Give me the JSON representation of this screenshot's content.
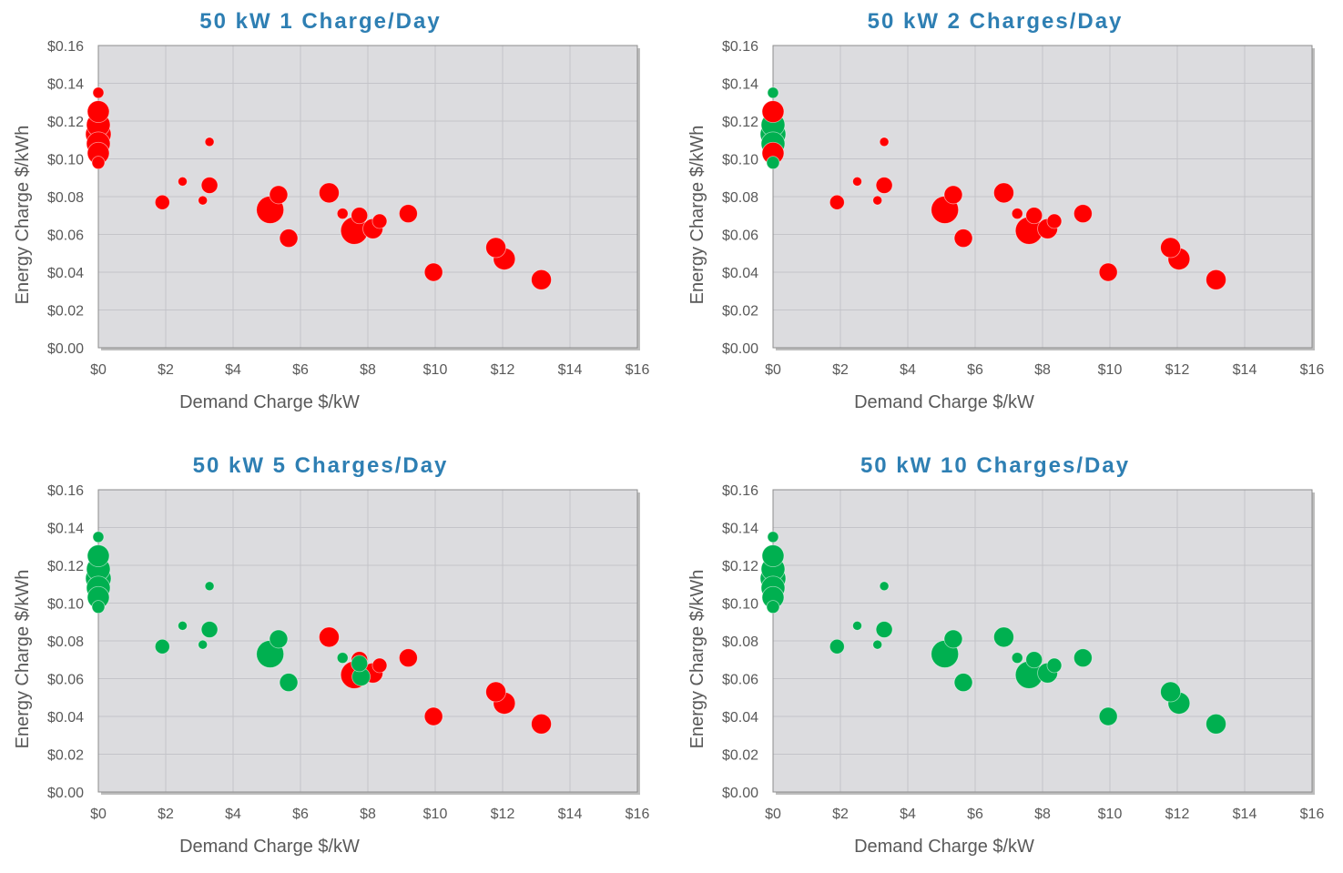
{
  "colors": {
    "plot_background": "#dcdcdf",
    "grid": "#c4c4c9",
    "plot_border": "#8c8c8c",
    "title": "#2e7fb3",
    "tick_text": "#595959",
    "red": "#ff0000",
    "green": "#00b050"
  },
  "chart_data": [
    {
      "type": "scatter",
      "title": "50 kW 1 Charge/Day",
      "xlabel": "Demand Charge $/kW",
      "ylabel": "Energy Charge $/kWh",
      "xlim": [
        0,
        16
      ],
      "ylim": [
        0,
        0.16
      ],
      "x_ticks": [
        "$0",
        "$2",
        "$4",
        "$6",
        "$8",
        "$10",
        "$12",
        "$14",
        "$16"
      ],
      "y_ticks": [
        "$0.00",
        "$0.02",
        "$0.04",
        "$0.06",
        "$0.08",
        "$0.10",
        "$0.12",
        "$0.14",
        "$0.16"
      ],
      "grid": true,
      "points": [
        {
          "x": 0,
          "y": 0.135,
          "size": 6,
          "color": "red"
        },
        {
          "x": 0,
          "y": 0.125,
          "size": 12,
          "color": "red"
        },
        {
          "x": 0,
          "y": 0.118,
          "size": 13,
          "color": "red"
        },
        {
          "x": 0,
          "y": 0.113,
          "size": 14,
          "color": "red"
        },
        {
          "x": 0,
          "y": 0.108,
          "size": 13,
          "color": "red"
        },
        {
          "x": 0,
          "y": 0.103,
          "size": 12,
          "color": "red"
        },
        {
          "x": 0,
          "y": 0.098,
          "size": 7,
          "color": "red"
        },
        {
          "x": 1.9,
          "y": 0.077,
          "size": 8,
          "color": "red"
        },
        {
          "x": 2.5,
          "y": 0.088,
          "size": 5,
          "color": "red"
        },
        {
          "x": 3.1,
          "y": 0.078,
          "size": 5,
          "color": "red"
        },
        {
          "x": 3.3,
          "y": 0.086,
          "size": 9,
          "color": "red"
        },
        {
          "x": 3.3,
          "y": 0.109,
          "size": 5,
          "color": "red"
        },
        {
          "x": 5.1,
          "y": 0.073,
          "size": 15,
          "color": "red"
        },
        {
          "x": 5.35,
          "y": 0.081,
          "size": 10,
          "color": "red"
        },
        {
          "x": 5.65,
          "y": 0.058,
          "size": 10,
          "color": "red"
        },
        {
          "x": 6.85,
          "y": 0.082,
          "size": 11,
          "color": "red"
        },
        {
          "x": 7.25,
          "y": 0.071,
          "size": 6,
          "color": "red"
        },
        {
          "x": 7.6,
          "y": 0.062,
          "size": 15,
          "color": "red"
        },
        {
          "x": 7.75,
          "y": 0.07,
          "size": 9,
          "color": "red"
        },
        {
          "x": 8.15,
          "y": 0.063,
          "size": 11,
          "color": "red"
        },
        {
          "x": 8.35,
          "y": 0.067,
          "size": 8,
          "color": "red"
        },
        {
          "x": 9.2,
          "y": 0.071,
          "size": 10,
          "color": "red"
        },
        {
          "x": 9.95,
          "y": 0.04,
          "size": 10,
          "color": "red"
        },
        {
          "x": 11.8,
          "y": 0.053,
          "size": 11,
          "color": "red"
        },
        {
          "x": 12.05,
          "y": 0.047,
          "size": 12,
          "color": "red"
        },
        {
          "x": 13.15,
          "y": 0.036,
          "size": 11,
          "color": "red"
        }
      ]
    },
    {
      "type": "scatter",
      "title": "50 kW 2 Charges/Day",
      "xlabel": "Demand Charge $/kW",
      "ylabel": "Energy Charge $/kWh",
      "xlim": [
        0,
        16
      ],
      "ylim": [
        0,
        0.16
      ],
      "x_ticks": [
        "$0",
        "$2",
        "$4",
        "$6",
        "$8",
        "$10",
        "$12",
        "$14",
        "$16"
      ],
      "y_ticks": [
        "$0.00",
        "$0.02",
        "$0.04",
        "$0.06",
        "$0.08",
        "$0.10",
        "$0.12",
        "$0.14",
        "$0.16"
      ],
      "grid": true,
      "points": [
        {
          "x": 0,
          "y": 0.135,
          "size": 6,
          "color": "green"
        },
        {
          "x": 0,
          "y": 0.125,
          "size": 12,
          "color": "red"
        },
        {
          "x": 0,
          "y": 0.118,
          "size": 13,
          "color": "green"
        },
        {
          "x": 0,
          "y": 0.113,
          "size": 14,
          "color": "green"
        },
        {
          "x": 0,
          "y": 0.108,
          "size": 13,
          "color": "green"
        },
        {
          "x": 0,
          "y": 0.103,
          "size": 12,
          "color": "red"
        },
        {
          "x": 0,
          "y": 0.098,
          "size": 7,
          "color": "green"
        },
        {
          "x": 1.9,
          "y": 0.077,
          "size": 8,
          "color": "red"
        },
        {
          "x": 2.5,
          "y": 0.088,
          "size": 5,
          "color": "red"
        },
        {
          "x": 3.1,
          "y": 0.078,
          "size": 5,
          "color": "red"
        },
        {
          "x": 3.3,
          "y": 0.086,
          "size": 9,
          "color": "red"
        },
        {
          "x": 3.3,
          "y": 0.109,
          "size": 5,
          "color": "red"
        },
        {
          "x": 5.1,
          "y": 0.073,
          "size": 15,
          "color": "red"
        },
        {
          "x": 5.35,
          "y": 0.081,
          "size": 10,
          "color": "red"
        },
        {
          "x": 5.65,
          "y": 0.058,
          "size": 10,
          "color": "red"
        },
        {
          "x": 6.85,
          "y": 0.082,
          "size": 11,
          "color": "red"
        },
        {
          "x": 7.25,
          "y": 0.071,
          "size": 6,
          "color": "red"
        },
        {
          "x": 7.6,
          "y": 0.062,
          "size": 15,
          "color": "red"
        },
        {
          "x": 7.75,
          "y": 0.07,
          "size": 9,
          "color": "red"
        },
        {
          "x": 8.15,
          "y": 0.063,
          "size": 11,
          "color": "red"
        },
        {
          "x": 8.35,
          "y": 0.067,
          "size": 8,
          "color": "red"
        },
        {
          "x": 9.2,
          "y": 0.071,
          "size": 10,
          "color": "red"
        },
        {
          "x": 9.95,
          "y": 0.04,
          "size": 10,
          "color": "red"
        },
        {
          "x": 11.8,
          "y": 0.053,
          "size": 11,
          "color": "red"
        },
        {
          "x": 12.05,
          "y": 0.047,
          "size": 12,
          "color": "red"
        },
        {
          "x": 13.15,
          "y": 0.036,
          "size": 11,
          "color": "red"
        }
      ]
    },
    {
      "type": "scatter",
      "title": "50 kW 5 Charges/Day",
      "xlabel": "Demand Charge $/kW",
      "ylabel": "Energy Charge $/kWh",
      "xlim": [
        0,
        16
      ],
      "ylim": [
        0,
        0.16
      ],
      "x_ticks": [
        "$0",
        "$2",
        "$4",
        "$6",
        "$8",
        "$10",
        "$12",
        "$14",
        "$16"
      ],
      "y_ticks": [
        "$0.00",
        "$0.02",
        "$0.04",
        "$0.06",
        "$0.08",
        "$0.10",
        "$0.12",
        "$0.14",
        "$0.16"
      ],
      "grid": true,
      "points": [
        {
          "x": 0,
          "y": 0.135,
          "size": 6,
          "color": "green"
        },
        {
          "x": 0,
          "y": 0.125,
          "size": 12,
          "color": "green"
        },
        {
          "x": 0,
          "y": 0.118,
          "size": 13,
          "color": "green"
        },
        {
          "x": 0,
          "y": 0.113,
          "size": 14,
          "color": "green"
        },
        {
          "x": 0,
          "y": 0.108,
          "size": 13,
          "color": "green"
        },
        {
          "x": 0,
          "y": 0.103,
          "size": 12,
          "color": "green"
        },
        {
          "x": 0,
          "y": 0.098,
          "size": 7,
          "color": "green"
        },
        {
          "x": 1.9,
          "y": 0.077,
          "size": 8,
          "color": "green"
        },
        {
          "x": 2.5,
          "y": 0.088,
          "size": 5,
          "color": "green"
        },
        {
          "x": 3.1,
          "y": 0.078,
          "size": 5,
          "color": "green"
        },
        {
          "x": 3.3,
          "y": 0.086,
          "size": 9,
          "color": "green"
        },
        {
          "x": 3.3,
          "y": 0.109,
          "size": 5,
          "color": "green"
        },
        {
          "x": 5.1,
          "y": 0.073,
          "size": 15,
          "color": "green"
        },
        {
          "x": 5.35,
          "y": 0.081,
          "size": 10,
          "color": "green"
        },
        {
          "x": 5.65,
          "y": 0.058,
          "size": 10,
          "color": "green"
        },
        {
          "x": 6.85,
          "y": 0.082,
          "size": 11,
          "color": "red"
        },
        {
          "x": 7.25,
          "y": 0.071,
          "size": 6,
          "color": "green"
        },
        {
          "x": 7.6,
          "y": 0.062,
          "size": 15,
          "color": "red"
        },
        {
          "x": 7.75,
          "y": 0.07,
          "size": 9,
          "color": "red"
        },
        {
          "x": 8.15,
          "y": 0.063,
          "size": 11,
          "color": "red"
        },
        {
          "x": 8.35,
          "y": 0.067,
          "size": 8,
          "color": "red"
        },
        {
          "x": 7.75,
          "y": 0.068,
          "size": 9,
          "color": "green"
        },
        {
          "x": 7.8,
          "y": 0.061,
          "size": 10,
          "color": "green"
        },
        {
          "x": 9.2,
          "y": 0.071,
          "size": 10,
          "color": "red"
        },
        {
          "x": 9.95,
          "y": 0.04,
          "size": 10,
          "color": "red"
        },
        {
          "x": 11.8,
          "y": 0.053,
          "size": 11,
          "color": "red"
        },
        {
          "x": 12.05,
          "y": 0.047,
          "size": 12,
          "color": "red"
        },
        {
          "x": 13.15,
          "y": 0.036,
          "size": 11,
          "color": "red"
        }
      ]
    },
    {
      "type": "scatter",
      "title": "50 kW 10 Charges/Day",
      "xlabel": "Demand Charge $/kW",
      "ylabel": "Energy Charge $/kWh",
      "xlim": [
        0,
        16
      ],
      "ylim": [
        0,
        0.16
      ],
      "x_ticks": [
        "$0",
        "$2",
        "$4",
        "$6",
        "$8",
        "$10",
        "$12",
        "$14",
        "$16"
      ],
      "y_ticks": [
        "$0.00",
        "$0.02",
        "$0.04",
        "$0.06",
        "$0.08",
        "$0.10",
        "$0.12",
        "$0.14",
        "$0.16"
      ],
      "grid": true,
      "points": [
        {
          "x": 0,
          "y": 0.135,
          "size": 6,
          "color": "green"
        },
        {
          "x": 0,
          "y": 0.125,
          "size": 12,
          "color": "green"
        },
        {
          "x": 0,
          "y": 0.118,
          "size": 13,
          "color": "green"
        },
        {
          "x": 0,
          "y": 0.113,
          "size": 14,
          "color": "green"
        },
        {
          "x": 0,
          "y": 0.108,
          "size": 13,
          "color": "green"
        },
        {
          "x": 0,
          "y": 0.103,
          "size": 12,
          "color": "green"
        },
        {
          "x": 0,
          "y": 0.098,
          "size": 7,
          "color": "green"
        },
        {
          "x": 1.9,
          "y": 0.077,
          "size": 8,
          "color": "green"
        },
        {
          "x": 2.5,
          "y": 0.088,
          "size": 5,
          "color": "green"
        },
        {
          "x": 3.1,
          "y": 0.078,
          "size": 5,
          "color": "green"
        },
        {
          "x": 3.3,
          "y": 0.086,
          "size": 9,
          "color": "green"
        },
        {
          "x": 3.3,
          "y": 0.109,
          "size": 5,
          "color": "green"
        },
        {
          "x": 5.1,
          "y": 0.073,
          "size": 15,
          "color": "green"
        },
        {
          "x": 5.35,
          "y": 0.081,
          "size": 10,
          "color": "green"
        },
        {
          "x": 5.65,
          "y": 0.058,
          "size": 10,
          "color": "green"
        },
        {
          "x": 6.85,
          "y": 0.082,
          "size": 11,
          "color": "green"
        },
        {
          "x": 7.25,
          "y": 0.071,
          "size": 6,
          "color": "green"
        },
        {
          "x": 7.6,
          "y": 0.062,
          "size": 15,
          "color": "green"
        },
        {
          "x": 7.75,
          "y": 0.07,
          "size": 9,
          "color": "green"
        },
        {
          "x": 8.15,
          "y": 0.063,
          "size": 11,
          "color": "green"
        },
        {
          "x": 8.35,
          "y": 0.067,
          "size": 8,
          "color": "green"
        },
        {
          "x": 9.2,
          "y": 0.071,
          "size": 10,
          "color": "green"
        },
        {
          "x": 9.95,
          "y": 0.04,
          "size": 10,
          "color": "green"
        },
        {
          "x": 11.8,
          "y": 0.053,
          "size": 11,
          "color": "green"
        },
        {
          "x": 12.05,
          "y": 0.047,
          "size": 12,
          "color": "green"
        },
        {
          "x": 13.15,
          "y": 0.036,
          "size": 11,
          "color": "green"
        }
      ]
    }
  ]
}
